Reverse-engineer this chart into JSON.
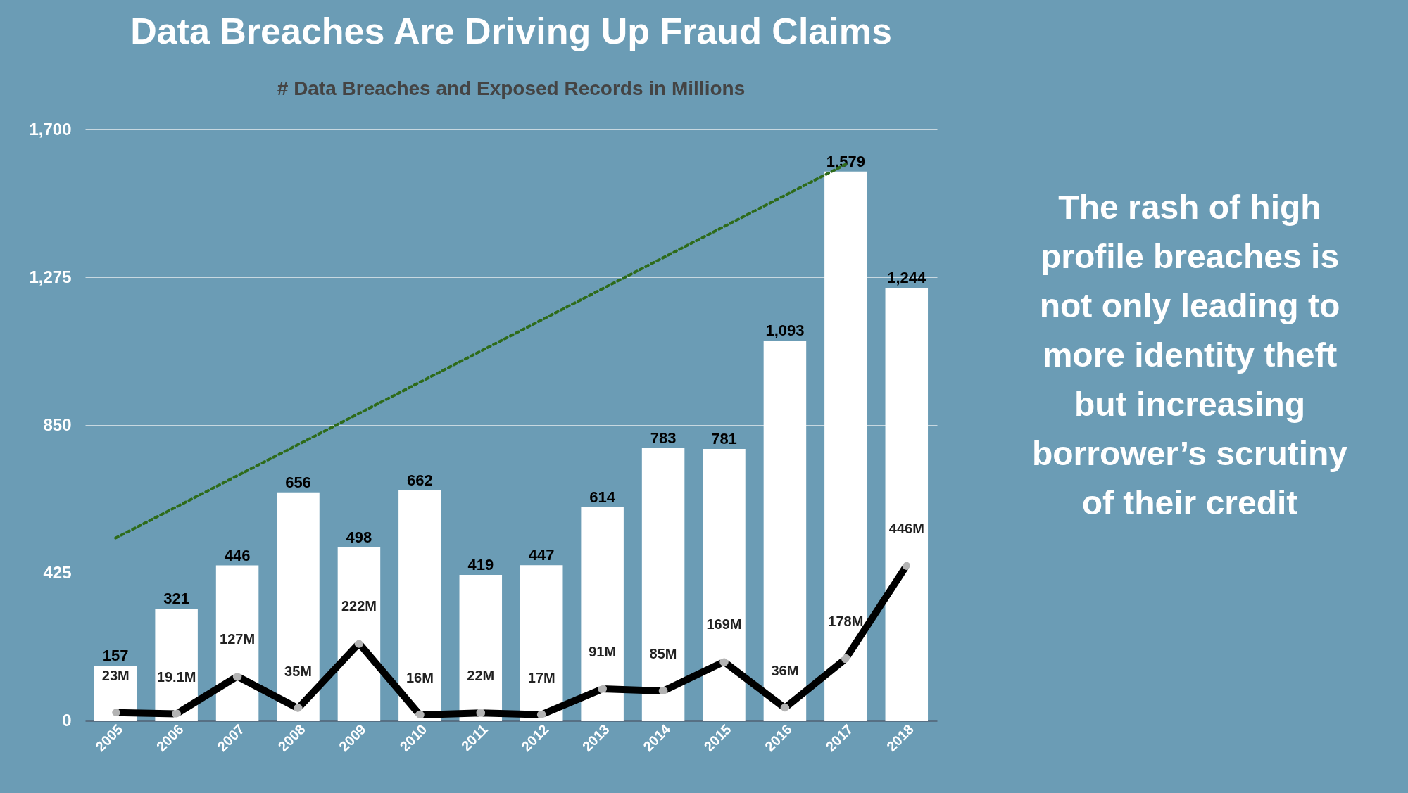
{
  "chart_data": {
    "type": "bar",
    "title": "Data Breaches Are Driving Up Fraud Claims",
    "subtitle": "# Data Breaches and Exposed Records in Millions",
    "categories": [
      "2005",
      "2006",
      "2007",
      "2008",
      "2009",
      "2010",
      "2011",
      "2012",
      "2013",
      "2014",
      "2015",
      "2016",
      "2017",
      "2018"
    ],
    "series": [
      {
        "color": "#ffffff",
        "values": [
          157,
          321,
          446,
          656,
          498,
          662,
          419,
          447,
          614,
          783,
          781,
          1093,
          1579,
          1244
        ],
        "value_labels": [
          "157",
          "321",
          "446",
          "656",
          "498",
          "662",
          "419",
          "447",
          "614",
          "783",
          "781",
          "1,093",
          "1,579",
          "1,244"
        ]
      },
      {
        "type": "line",
        "color": "#000000",
        "marker": "circle",
        "values": [
          23,
          19.1,
          127,
          35,
          222,
          16,
          22,
          17,
          91,
          85,
          169,
          36,
          178,
          446
        ],
        "value_labels": [
          "23M",
          "19.1M",
          "127M",
          "35M",
          "222M",
          "16M",
          "22M",
          "17M",
          "91M",
          "85M",
          "169M",
          "36M",
          "178M",
          "446M"
        ]
      },
      {
        "type": "line",
        "color": "#2e6b1a",
        "line_style": "dotted",
        "values": [
          525,
          null,
          null,
          null,
          null,
          null,
          null,
          null,
          null,
          null,
          null,
          null,
          1600,
          null
        ]
      }
    ],
    "ylim": [
      0,
      1700
    ],
    "yticks": [
      0,
      425,
      850,
      {
        "value": 1275,
        "label": "1,275"
      },
      {
        "value": 1700,
        "label": "1,700"
      }
    ],
    "grid": "y",
    "annotations": [
      "The rash of high profile breaches is not only leading to more identity theft but increasing borrower’s scrutiny of their credit"
    ]
  }
}
